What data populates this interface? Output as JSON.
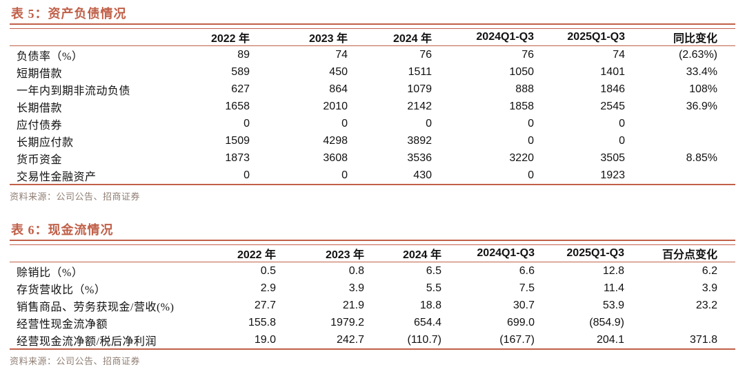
{
  "colors": {
    "accent": "#c05f48",
    "source_text": "#8f7d73",
    "body_text": "#111111"
  },
  "table5": {
    "title": "表 5：资产负债情况",
    "columns": [
      "",
      "2022 年",
      "2023 年",
      "2024 年",
      "2024Q1-Q3",
      "2025Q1-Q3",
      "同比变化"
    ],
    "rows": [
      {
        "label": "负债率（%）",
        "values": [
          "89",
          "74",
          "76",
          "76",
          "74",
          "(2.63%)"
        ]
      },
      {
        "label": "短期借款",
        "values": [
          "589",
          "450",
          "1511",
          "1050",
          "1401",
          "33.4%"
        ]
      },
      {
        "label": "一年内到期非流动负债",
        "values": [
          "627",
          "864",
          "1079",
          "888",
          "1846",
          "108%"
        ]
      },
      {
        "label": "长期借款",
        "values": [
          "1658",
          "2010",
          "2142",
          "1858",
          "2545",
          "36.9%"
        ]
      },
      {
        "label": "应付债券",
        "values": [
          "0",
          "0",
          "0",
          "0",
          "0",
          ""
        ]
      },
      {
        "label": "长期应付款",
        "values": [
          "1509",
          "4298",
          "3892",
          "0",
          "0",
          ""
        ]
      },
      {
        "label": "货币资金",
        "values": [
          "1873",
          "3608",
          "3536",
          "3220",
          "3505",
          "8.85%"
        ]
      },
      {
        "label": "交易性金融资产",
        "values": [
          "0",
          "0",
          "430",
          "0",
          "1923",
          ""
        ]
      }
    ],
    "source": "资料来源：公司公告、招商证券"
  },
  "table6": {
    "title": "表 6：现金流情况",
    "columns": [
      "",
      "2022 年",
      "2023 年",
      "2024 年",
      "2024Q1-Q3",
      "2025Q1-Q3",
      "百分点变化"
    ],
    "rows": [
      {
        "label": "赊销比（%）",
        "values": [
          "0.5",
          "0.8",
          "6.5",
          "6.6",
          "12.8",
          "6.2"
        ]
      },
      {
        "label": "存货营收比（%）",
        "values": [
          "2.9",
          "3.9",
          "5.5",
          "7.5",
          "11.4",
          "3.9"
        ]
      },
      {
        "label": "销售商品、劳务获现金/营收(%)",
        "values": [
          "27.7",
          "21.9",
          "18.8",
          "30.7",
          "53.9",
          "23.2"
        ]
      },
      {
        "label": "经营性现金流净额",
        "values": [
          "155.8",
          "1979.2",
          "654.4",
          "699.0",
          "(854.9)",
          ""
        ]
      },
      {
        "label": "经营现金流净额/税后净利润",
        "values": [
          "19.0",
          "242.7",
          "(110.7)",
          "(167.7)",
          "204.1",
          "371.8"
        ]
      }
    ],
    "source": "资料来源：公司公告、招商证券"
  }
}
